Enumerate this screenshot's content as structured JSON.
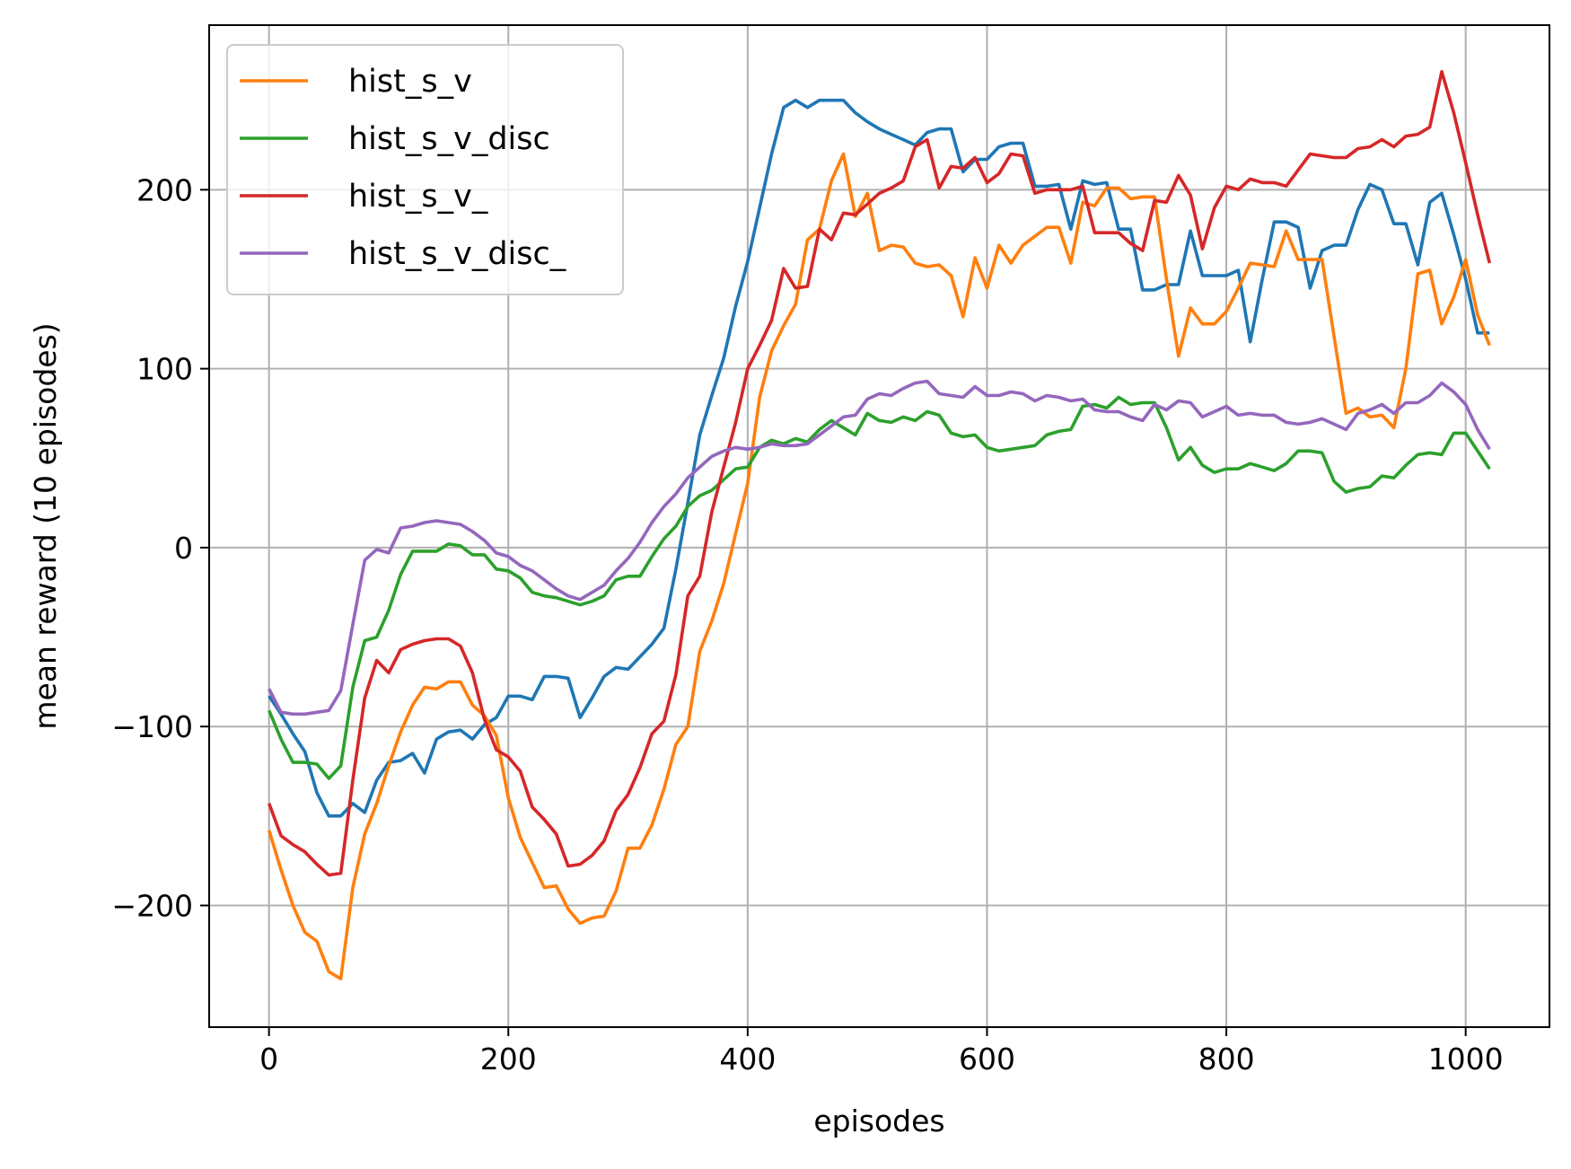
{
  "chart_data": {
    "type": "line",
    "title": "",
    "xlabel": "episodes",
    "ylabel": "mean reward (10 episodes)",
    "xlim": [
      -50,
      1070
    ],
    "ylim": [
      -268,
      292
    ],
    "xticks": [
      0,
      200,
      400,
      600,
      800,
      1000
    ],
    "yticks": [
      -200,
      -100,
      0,
      100,
      200
    ],
    "grid": true,
    "legend": "top-left",
    "series": [
      {
        "name": "",
        "color": "#1f77b4",
        "x": [
          0,
          10,
          20,
          30,
          40,
          50,
          60,
          70,
          80,
          90,
          100,
          110,
          120,
          130,
          140,
          150,
          160,
          170,
          180,
          190,
          200,
          210,
          220,
          230,
          240,
          250,
          260,
          270,
          280,
          290,
          300,
          310,
          320,
          330,
          340,
          350,
          360,
          370,
          380,
          390,
          400,
          410,
          420,
          430,
          440,
          450,
          460,
          470,
          480,
          490,
          500,
          510,
          520,
          530,
          540,
          550,
          560,
          570,
          580,
          590,
          600,
          610,
          620,
          630,
          640,
          650,
          660,
          670,
          680,
          690,
          700,
          710,
          720,
          730,
          740,
          750,
          760,
          770,
          780,
          790,
          800,
          810,
          820,
          830,
          840,
          850,
          860,
          870,
          880,
          890,
          900,
          910,
          920,
          930,
          940,
          950,
          960,
          970,
          980,
          990,
          1000,
          1010,
          1020
        ],
        "y": [
          -83,
          -93,
          -104,
          -114,
          -137,
          -150,
          -150,
          -143,
          -148,
          -130,
          -120,
          -119,
          -115,
          -126,
          -107,
          -103,
          -102,
          -107,
          -99,
          -95,
          -83,
          -83,
          -85,
          -72,
          -72,
          -73,
          -95,
          -84,
          -72,
          -67,
          -68,
          -61,
          -54,
          -45,
          -12,
          25,
          63,
          85,
          106,
          135,
          160,
          190,
          220,
          246,
          250,
          246,
          250,
          250,
          250,
          243,
          238,
          234,
          231,
          228,
          225,
          232,
          234,
          234,
          210,
          217,
          217,
          224,
          226,
          226,
          202,
          202,
          203,
          178,
          205,
          203,
          204,
          178,
          178,
          144,
          144,
          147,
          147,
          177,
          152,
          152,
          152,
          155,
          115,
          150,
          182,
          182,
          179,
          145,
          166,
          169,
          169,
          189,
          203,
          200,
          181,
          181,
          158,
          193,
          198,
          175,
          150,
          120,
          120
        ]
      },
      {
        "name": "hist_s_v",
        "color": "#ff7f0e",
        "x": [
          0,
          10,
          20,
          30,
          40,
          50,
          60,
          70,
          80,
          90,
          100,
          110,
          120,
          130,
          140,
          150,
          160,
          170,
          180,
          190,
          200,
          210,
          220,
          230,
          240,
          250,
          260,
          270,
          280,
          290,
          300,
          310,
          320,
          330,
          340,
          350,
          360,
          370,
          380,
          390,
          400,
          410,
          420,
          430,
          440,
          450,
          460,
          470,
          480,
          490,
          500,
          510,
          520,
          530,
          540,
          550,
          560,
          570,
          580,
          590,
          600,
          610,
          620,
          630,
          640,
          650,
          660,
          670,
          680,
          690,
          700,
          710,
          720,
          730,
          740,
          750,
          760,
          770,
          780,
          790,
          800,
          810,
          820,
          830,
          840,
          850,
          860,
          870,
          880,
          890,
          900,
          910,
          920,
          930,
          940,
          950,
          960,
          970,
          980,
          990,
          1000,
          1010,
          1020
        ],
        "y": [
          -158,
          -180,
          -200,
          -215,
          -220,
          -237,
          -241,
          -190,
          -160,
          -143,
          -122,
          -103,
          -88,
          -78,
          -79,
          -75,
          -75,
          -88,
          -94,
          -105,
          -140,
          -162,
          -176,
          -190,
          -189,
          -202,
          -210,
          -207,
          -206,
          -192,
          -168,
          -168,
          -155,
          -135,
          -110,
          -100,
          -58,
          -41,
          -20,
          8,
          36,
          84,
          110,
          124,
          136,
          172,
          178,
          205,
          220,
          185,
          198,
          166,
          169,
          168,
          159,
          157,
          158,
          152,
          129,
          162,
          145,
          169,
          159,
          169,
          174,
          179,
          179,
          159,
          193,
          191,
          201,
          201,
          195,
          196,
          196,
          150,
          107,
          134,
          125,
          125,
          132,
          145,
          159,
          158,
          157,
          177,
          161,
          161,
          161,
          118,
          75,
          78,
          73,
          74,
          67,
          100,
          153,
          155,
          125,
          140,
          161,
          130,
          113
        ]
      },
      {
        "name": "hist_s_v_disc",
        "color": "#2ca02c",
        "x": [
          0,
          10,
          20,
          30,
          40,
          50,
          60,
          70,
          80,
          90,
          100,
          110,
          120,
          130,
          140,
          150,
          160,
          170,
          180,
          190,
          200,
          210,
          220,
          230,
          240,
          250,
          260,
          270,
          280,
          290,
          300,
          310,
          320,
          330,
          340,
          350,
          360,
          370,
          380,
          390,
          400,
          410,
          420,
          430,
          440,
          450,
          460,
          470,
          480,
          490,
          500,
          510,
          520,
          530,
          540,
          550,
          560,
          570,
          580,
          590,
          600,
          610,
          620,
          630,
          640,
          650,
          660,
          670,
          680,
          690,
          700,
          710,
          720,
          730,
          740,
          750,
          760,
          770,
          780,
          790,
          800,
          810,
          820,
          830,
          840,
          850,
          860,
          870,
          880,
          890,
          900,
          910,
          920,
          930,
          940,
          950,
          960,
          970,
          980,
          990,
          1000,
          1010,
          1020
        ],
        "y": [
          -91,
          -107,
          -120,
          -120,
          -121,
          -129,
          -122,
          -78,
          -52,
          -50,
          -35,
          -15,
          -2,
          -2,
          -2,
          2,
          1,
          -4,
          -4,
          -12,
          -13,
          -17,
          -25,
          -27,
          -28,
          -30,
          -32,
          -30,
          -27,
          -18,
          -16,
          -16,
          -5,
          5,
          12,
          23,
          29,
          32,
          38,
          44,
          45,
          56,
          60,
          58,
          61,
          59,
          66,
          71,
          67,
          63,
          75,
          71,
          70,
          73,
          71,
          76,
          74,
          64,
          62,
          63,
          56,
          54,
          55,
          56,
          57,
          63,
          65,
          66,
          79,
          80,
          78,
          84,
          80,
          81,
          81,
          67,
          49,
          56,
          46,
          42,
          44,
          44,
          47,
          45,
          43,
          47,
          54,
          54,
          53,
          37,
          31,
          33,
          34,
          40,
          39,
          46,
          52,
          53,
          52,
          64,
          64,
          54,
          44
        ]
      },
      {
        "name": "hist_s_v_",
        "color": "#d62728",
        "x": [
          0,
          10,
          20,
          30,
          40,
          50,
          60,
          70,
          80,
          90,
          100,
          110,
          120,
          130,
          140,
          150,
          160,
          170,
          180,
          190,
          200,
          210,
          220,
          230,
          240,
          250,
          260,
          270,
          280,
          290,
          300,
          310,
          320,
          330,
          340,
          350,
          360,
          370,
          380,
          390,
          400,
          410,
          420,
          430,
          440,
          450,
          460,
          470,
          480,
          490,
          500,
          510,
          520,
          530,
          540,
          550,
          560,
          570,
          580,
          590,
          600,
          610,
          620,
          630,
          640,
          650,
          660,
          670,
          680,
          690,
          700,
          710,
          720,
          730,
          740,
          750,
          760,
          770,
          780,
          790,
          800,
          810,
          820,
          830,
          840,
          850,
          860,
          870,
          880,
          890,
          900,
          910,
          920,
          930,
          940,
          950,
          960,
          970,
          980,
          990,
          1000,
          1010,
          1020
        ],
        "y": [
          -143,
          -161,
          -166,
          -170,
          -177,
          -183,
          -182,
          -130,
          -84,
          -63,
          -70,
          -57,
          -54,
          -52,
          -51,
          -51,
          -55,
          -70,
          -96,
          -113,
          -117,
          -125,
          -145,
          -152,
          -160,
          -178,
          -177,
          -172,
          -164,
          -147,
          -138,
          -123,
          -104,
          -97,
          -71,
          -27,
          -16,
          20,
          45,
          70,
          100,
          113,
          127,
          156,
          145,
          146,
          178,
          172,
          187,
          186,
          192,
          198,
          201,
          205,
          224,
          228,
          201,
          213,
          212,
          218,
          204,
          209,
          220,
          219,
          198,
          200,
          200,
          200,
          202,
          176,
          176,
          176,
          170,
          166,
          194,
          193,
          208,
          197,
          167,
          190,
          202,
          200,
          206,
          204,
          204,
          202,
          211,
          220,
          219,
          218,
          218,
          223,
          224,
          228,
          224,
          230,
          231,
          235,
          266,
          243,
          215,
          186,
          159
        ]
      },
      {
        "name": "hist_s_v_disc_",
        "color": "#9467bd",
        "x": [
          0,
          10,
          20,
          30,
          40,
          50,
          60,
          70,
          80,
          90,
          100,
          110,
          120,
          130,
          140,
          150,
          160,
          170,
          180,
          190,
          200,
          210,
          220,
          230,
          240,
          250,
          260,
          270,
          280,
          290,
          300,
          310,
          320,
          330,
          340,
          350,
          360,
          370,
          380,
          390,
          400,
          410,
          420,
          430,
          440,
          450,
          460,
          470,
          480,
          490,
          500,
          510,
          520,
          530,
          540,
          550,
          560,
          570,
          580,
          590,
          600,
          610,
          620,
          630,
          640,
          650,
          660,
          670,
          680,
          690,
          700,
          710,
          720,
          730,
          740,
          750,
          760,
          770,
          780,
          790,
          800,
          810,
          820,
          830,
          840,
          850,
          860,
          870,
          880,
          890,
          900,
          910,
          920,
          930,
          940,
          950,
          960,
          970,
          980,
          990,
          1000,
          1010,
          1020
        ],
        "y": [
          -79,
          -92,
          -93,
          -93,
          -92,
          -91,
          -80,
          -43,
          -7,
          -1,
          -3,
          11,
          12,
          14,
          15,
          14,
          13,
          9,
          4,
          -3,
          -5,
          -10,
          -13,
          -18,
          -23,
          -27,
          -29,
          -25,
          -21,
          -13,
          -6,
          3,
          14,
          23,
          30,
          39,
          45,
          51,
          54,
          56,
          55,
          56,
          58,
          57,
          57,
          58,
          63,
          68,
          73,
          74,
          83,
          86,
          85,
          89,
          92,
          93,
          86,
          85,
          84,
          90,
          85,
          85,
          87,
          86,
          82,
          85,
          84,
          82,
          83,
          77,
          76,
          76,
          73,
          71,
          80,
          77,
          82,
          81,
          73,
          76,
          79,
          74,
          75,
          74,
          74,
          70,
          69,
          70,
          72,
          69,
          66,
          75,
          77,
          80,
          75,
          81,
          81,
          85,
          92,
          87,
          80,
          66,
          55
        ]
      }
    ]
  }
}
